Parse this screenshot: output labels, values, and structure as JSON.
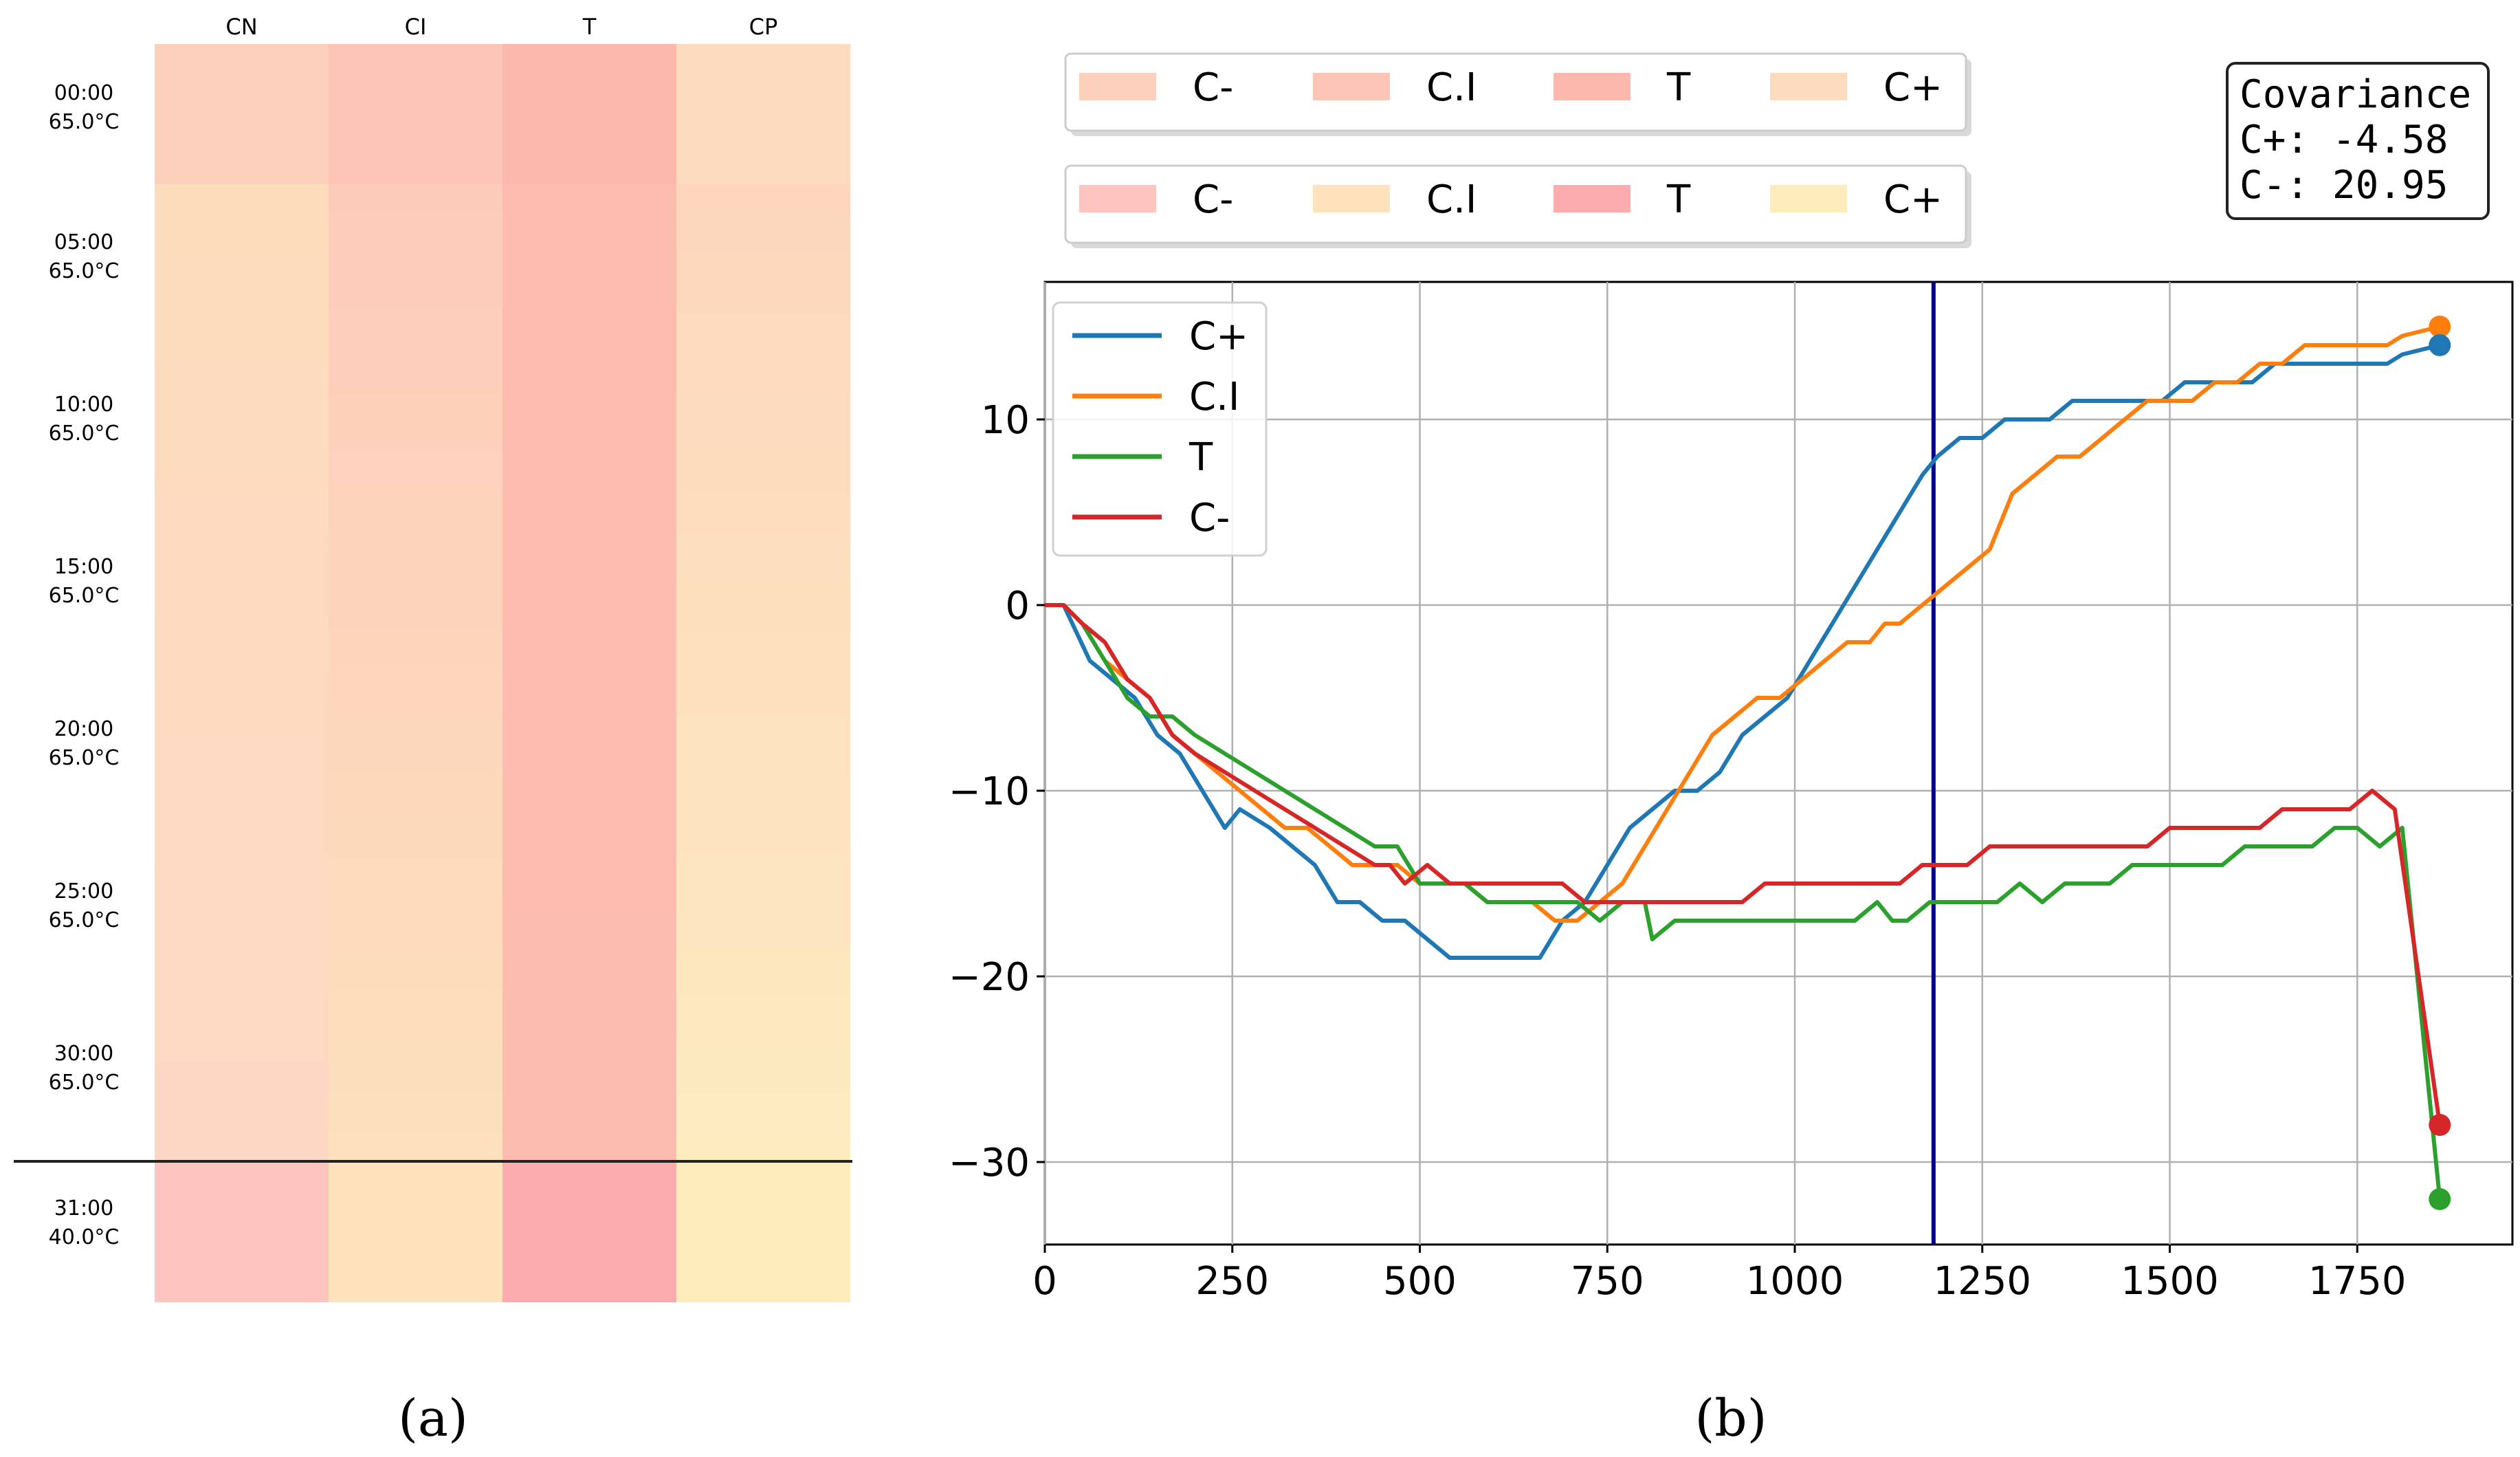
{
  "panel_a": {
    "label": "(a)",
    "columns": [
      "CN",
      "CI",
      "T",
      "CP"
    ],
    "row_labels": [
      {
        "time": "00:00",
        "temp": "65.0°C"
      },
      {
        "time": "05:00",
        "temp": "65.0°C"
      },
      {
        "time": "10:00",
        "temp": "65.0°C"
      },
      {
        "time": "15:00",
        "temp": "65.0°C"
      },
      {
        "time": "20:00",
        "temp": "65.0°C"
      },
      {
        "time": "25:00",
        "temp": "65.0°C"
      },
      {
        "time": "30:00",
        "temp": "65.0°C"
      },
      {
        "time": "31:00",
        "temp": "40.0°C"
      }
    ],
    "top_row_colors": [
      "#fdd0bb",
      "#fdc4b8",
      "#fdb8ad",
      "#fddbbe"
    ],
    "start_colors": [
      "#fddcbc",
      "#fdcbba",
      "#fdbcae",
      "#fdd6bd"
    ],
    "end_colors": [
      "#fdd7c4",
      "#fde0bc",
      "#fdbcb0",
      "#fdebc0"
    ],
    "bottom_row_colors": [
      "#fdc4c0",
      "#fde2bc",
      "#fdacad",
      "#fdecb9"
    ]
  },
  "panel_b": {
    "label": "(b)",
    "legend_box_1": [
      {
        "label": "C-",
        "color": "#fdd0bb"
      },
      {
        "label": "C.I",
        "color": "#fdc4b8"
      },
      {
        "label": "T",
        "color": "#fdb8ad"
      },
      {
        "label": "C+",
        "color": "#fddbbe"
      }
    ],
    "legend_box_2": [
      {
        "label": "C-",
        "color": "#fdc4c0"
      },
      {
        "label": "C.I",
        "color": "#fde2bc"
      },
      {
        "label": "T",
        "color": "#fdacad"
      },
      {
        "label": "C+",
        "color": "#fdecb9"
      }
    ],
    "covariance": {
      "title": "Covariance",
      "lines": [
        "C+: -4.58",
        "C-: 20.95"
      ]
    },
    "vline_x": 1185,
    "vline_color": "#00008b"
  },
  "chart_data": {
    "type": "line",
    "title": "",
    "xlabel": "",
    "ylabel": "",
    "xlim": [
      0,
      1950
    ],
    "ylim": [
      -34,
      17
    ],
    "xticks": [
      0,
      250,
      500,
      750,
      1000,
      1250,
      1500,
      1750
    ],
    "yticks": [
      10,
      0,
      -10,
      -20,
      -30
    ],
    "ytick_labels": [
      "10",
      "0",
      "−10",
      "−20",
      "−30"
    ],
    "grid": true,
    "legend_position": "top-left",
    "series": [
      {
        "name": "C+",
        "color": "#1f77b4",
        "x": [
          0,
          25,
          60,
          90,
          120,
          150,
          180,
          210,
          240,
          260,
          300,
          330,
          360,
          390,
          420,
          450,
          480,
          510,
          540,
          570,
          600,
          630,
          660,
          690,
          720,
          750,
          780,
          810,
          840,
          870,
          900,
          930,
          960,
          990,
          1020,
          1050,
          1080,
          1110,
          1140,
          1170,
          1190,
          1220,
          1250,
          1280,
          1310,
          1340,
          1370,
          1400,
          1430,
          1460,
          1490,
          1520,
          1550,
          1580,
          1610,
          1640,
          1670,
          1700,
          1730,
          1760,
          1790,
          1810,
          1860
        ],
        "y": [
          0,
          0,
          -3,
          -4,
          -5,
          -7,
          -8,
          -10,
          -12,
          -11,
          -12,
          -13,
          -14,
          -16,
          -16,
          -17,
          -17,
          -18,
          -19,
          -19,
          -19,
          -19,
          -19,
          -17,
          -16,
          -14,
          -12,
          -11,
          -10,
          -10,
          -9,
          -7,
          -6,
          -5,
          -3,
          -1,
          1,
          3,
          5,
          7,
          8,
          9,
          9,
          10,
          10,
          10,
          11,
          11,
          11,
          11,
          11,
          12,
          12,
          12,
          12,
          13,
          13,
          13,
          13,
          13,
          13,
          13.5,
          14
        ]
      },
      {
        "name": "C.I",
        "color": "#ff7f0e",
        "x": [
          0,
          25,
          50,
          80,
          110,
          140,
          170,
          200,
          230,
          260,
          290,
          320,
          350,
          380,
          410,
          440,
          470,
          500,
          530,
          560,
          590,
          620,
          650,
          680,
          710,
          740,
          770,
          800,
          830,
          860,
          890,
          920,
          950,
          980,
          1010,
          1040,
          1070,
          1100,
          1120,
          1140,
          1170,
          1200,
          1230,
          1260,
          1290,
          1320,
          1350,
          1380,
          1410,
          1440,
          1470,
          1500,
          1530,
          1560,
          1590,
          1620,
          1650,
          1680,
          1710,
          1740,
          1770,
          1790,
          1810,
          1860
        ],
        "y": [
          0,
          0,
          -1,
          -3,
          -4,
          -5,
          -7,
          -8,
          -9,
          -10,
          -11,
          -12,
          -12,
          -13,
          -14,
          -14,
          -14,
          -15,
          -15,
          -15,
          -16,
          -16,
          -16,
          -17,
          -17,
          -16,
          -15,
          -13,
          -11,
          -9,
          -7,
          -6,
          -5,
          -5,
          -4,
          -3,
          -2,
          -2,
          -1,
          -1,
          0,
          1,
          2,
          3,
          6,
          7,
          8,
          8,
          9,
          10,
          11,
          11,
          11,
          12,
          12,
          13,
          13,
          14,
          14,
          14,
          14,
          14,
          14.5,
          15
        ]
      },
      {
        "name": "T",
        "color": "#2ca02c",
        "x": [
          0,
          25,
          50,
          80,
          110,
          140,
          170,
          200,
          240,
          280,
          320,
          360,
          400,
          440,
          470,
          500,
          530,
          560,
          590,
          620,
          650,
          680,
          710,
          740,
          770,
          800,
          810,
          840,
          870,
          900,
          930,
          960,
          990,
          1020,
          1050,
          1080,
          1110,
          1130,
          1150,
          1180,
          1210,
          1240,
          1270,
          1300,
          1330,
          1360,
          1390,
          1420,
          1450,
          1480,
          1510,
          1540,
          1570,
          1600,
          1630,
          1660,
          1690,
          1720,
          1750,
          1780,
          1810,
          1860
        ],
        "y": [
          0,
          0,
          -1,
          -3,
          -5,
          -6,
          -6,
          -7,
          -8,
          -9,
          -10,
          -11,
          -12,
          -13,
          -13,
          -15,
          -15,
          -15,
          -16,
          -16,
          -16,
          -16,
          -16,
          -17,
          -16,
          -16,
          -18,
          -17,
          -17,
          -17,
          -17,
          -17,
          -17,
          -17,
          -17,
          -17,
          -16,
          -17,
          -17,
          -16,
          -16,
          -16,
          -16,
          -15,
          -16,
          -15,
          -15,
          -15,
          -14,
          -14,
          -14,
          -14,
          -14,
          -13,
          -13,
          -13,
          -13,
          -12,
          -12,
          -13,
          -12,
          -32
        ]
      },
      {
        "name": "C-",
        "color": "#d62728",
        "x": [
          0,
          25,
          50,
          80,
          110,
          140,
          170,
          200,
          240,
          280,
          320,
          360,
          400,
          440,
          460,
          480,
          510,
          540,
          570,
          600,
          630,
          660,
          690,
          720,
          750,
          780,
          810,
          840,
          870,
          900,
          930,
          960,
          990,
          1020,
          1050,
          1080,
          1110,
          1140,
          1170,
          1200,
          1230,
          1260,
          1290,
          1320,
          1350,
          1380,
          1410,
          1440,
          1470,
          1500,
          1530,
          1560,
          1590,
          1620,
          1650,
          1680,
          1710,
          1740,
          1770,
          1800,
          1860
        ],
        "y": [
          0,
          0,
          -1,
          -2,
          -4,
          -5,
          -7,
          -8,
          -9,
          -10,
          -11,
          -12,
          -13,
          -14,
          -14,
          -15,
          -14,
          -15,
          -15,
          -15,
          -15,
          -15,
          -15,
          -16,
          -16,
          -16,
          -16,
          -16,
          -16,
          -16,
          -16,
          -15,
          -15,
          -15,
          -15,
          -15,
          -15,
          -15,
          -14,
          -14,
          -14,
          -13,
          -13,
          -13,
          -13,
          -13,
          -13,
          -13,
          -13,
          -12,
          -12,
          -12,
          -12,
          -12,
          -11,
          -11,
          -11,
          -11,
          -10,
          -11,
          -28
        ]
      }
    ],
    "end_markers": [
      {
        "series": "C.I",
        "x": 1860,
        "y": 15
      },
      {
        "series": "C+",
        "x": 1860,
        "y": 14
      },
      {
        "series": "C-",
        "x": 1860,
        "y": -28
      },
      {
        "series": "T",
        "x": 1860,
        "y": -32
      }
    ]
  }
}
